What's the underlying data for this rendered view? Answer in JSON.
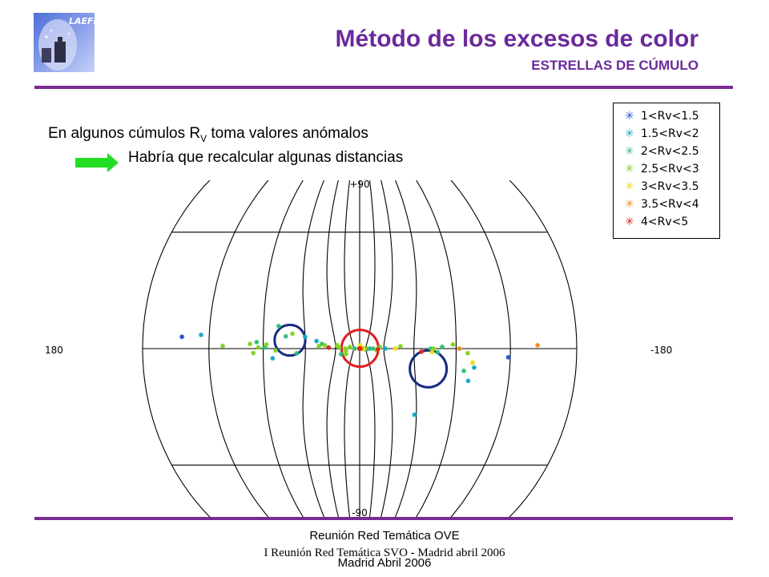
{
  "header": {
    "title": "Método de los excesos de color",
    "subtitle": "ESTRELLAS DE CÚMULO",
    "logo_text": "LAEFF"
  },
  "body_text": {
    "line1_prefix": "En algunos cúmulos R",
    "line1_sub": "V",
    "line1_suffix": " toma valores anómalos",
    "line2": "Habría que recalcular algunas distancias"
  },
  "chart_data": {
    "type": "scatter",
    "projection": "aitoff",
    "axis_labels": {
      "top": "+90",
      "bottom": "-90",
      "left": "180",
      "right": "-180"
    },
    "legend_position": "top-right",
    "series": [
      {
        "name": "1<Rv<1.5",
        "color": "#1f4fd6",
        "points": [
          [
            163,
            3.5
          ],
          [
            -149,
            -3
          ]
        ]
      },
      {
        "name": "1.5<Rv<2",
        "color": "#14a7c6",
        "points": [
          [
            154,
            4.5
          ],
          [
            114,
            -5
          ],
          [
            90,
            8
          ],
          [
            80,
            6
          ],
          [
            -128,
            -14
          ],
          [
            -131,
            -8
          ],
          [
            -88,
            -38
          ],
          [
            -62,
            0
          ],
          [
            -33,
            -1
          ],
          [
            2,
            -2
          ]
        ]
      },
      {
        "name": "2<Rv<2.5",
        "color": "#2ebf78",
        "points": [
          [
            124,
            3
          ],
          [
            119,
            0.5
          ],
          [
            110,
            12
          ],
          [
            105,
            7
          ],
          [
            97,
            -3
          ],
          [
            75,
            4
          ],
          [
            -125,
            -10
          ],
          [
            -111,
            1
          ],
          [
            -103,
            0
          ],
          [
            -45,
            0
          ],
          [
            -39,
            0
          ],
          [
            -30,
            -1
          ],
          [
            52,
            -7
          ],
          [
            27,
            0
          ],
          [
            -108,
            -2
          ]
        ]
      },
      {
        "name": "2.5<Rv<3",
        "color": "#7ed321",
        "points": [
          [
            143,
            1
          ],
          [
            128,
            2
          ],
          [
            126,
            -2
          ],
          [
            123,
            0.5
          ],
          [
            118,
            2
          ],
          [
            112,
            -1
          ],
          [
            100,
            9
          ],
          [
            78,
            2
          ],
          [
            72,
            3
          ],
          [
            58,
            4
          ],
          [
            46,
            0
          ],
          [
            45,
            -4
          ],
          [
            38,
            3
          ],
          [
            8,
            0
          ],
          [
            -18,
            1
          ],
          [
            -22,
            0
          ],
          [
            -28,
            0
          ],
          [
            -50,
            -2
          ],
          [
            -55,
            2
          ],
          [
            -78,
            2
          ],
          [
            -105,
            0
          ],
          [
            -118,
            2
          ],
          [
            -127,
            -2
          ],
          [
            44,
            -8
          ],
          [
            55,
            1
          ]
        ]
      },
      {
        "name": "3<Rv<3.5",
        "color": "#f5d70a",
        "points": [
          [
            -4,
            11
          ],
          [
            -3,
            0
          ],
          [
            7,
            1
          ],
          [
            -24,
            -1
          ],
          [
            -73,
            0
          ],
          [
            -104,
            -2
          ],
          [
            -130,
            -6
          ]
        ]
      },
      {
        "name": "3.5<Rv<4",
        "color": "#f08a14",
        "points": [
          [
            -10,
            -2
          ],
          [
            -15,
            1
          ],
          [
            -122,
            0
          ],
          [
            -163,
            1
          ],
          [
            3,
            0.5
          ]
        ]
      },
      {
        "name": "4<Rv<5",
        "color": "#e02020",
        "points": [
          [
            -5,
            1
          ],
          [
            4,
            0
          ],
          [
            68,
            1
          ],
          [
            -52,
            -1
          ],
          [
            -96,
            -2
          ]
        ]
      }
    ],
    "highlight_circles": [
      {
        "lon": 102,
        "lat": 5,
        "radius_deg": 10,
        "color": "#162b80"
      },
      {
        "lon": -5,
        "lat": 3,
        "radius_deg": 12,
        "color": "#e02020"
      },
      {
        "lon": -101,
        "lat": -12,
        "radius_deg": 12,
        "color": "#162b80"
      }
    ]
  },
  "footer": {
    "line1": "Reunión Red Temática OVE",
    "line2": "Madrid Abril 2006",
    "line3": "I Reunión Red Temática SVO - Madrid abril 2006"
  }
}
